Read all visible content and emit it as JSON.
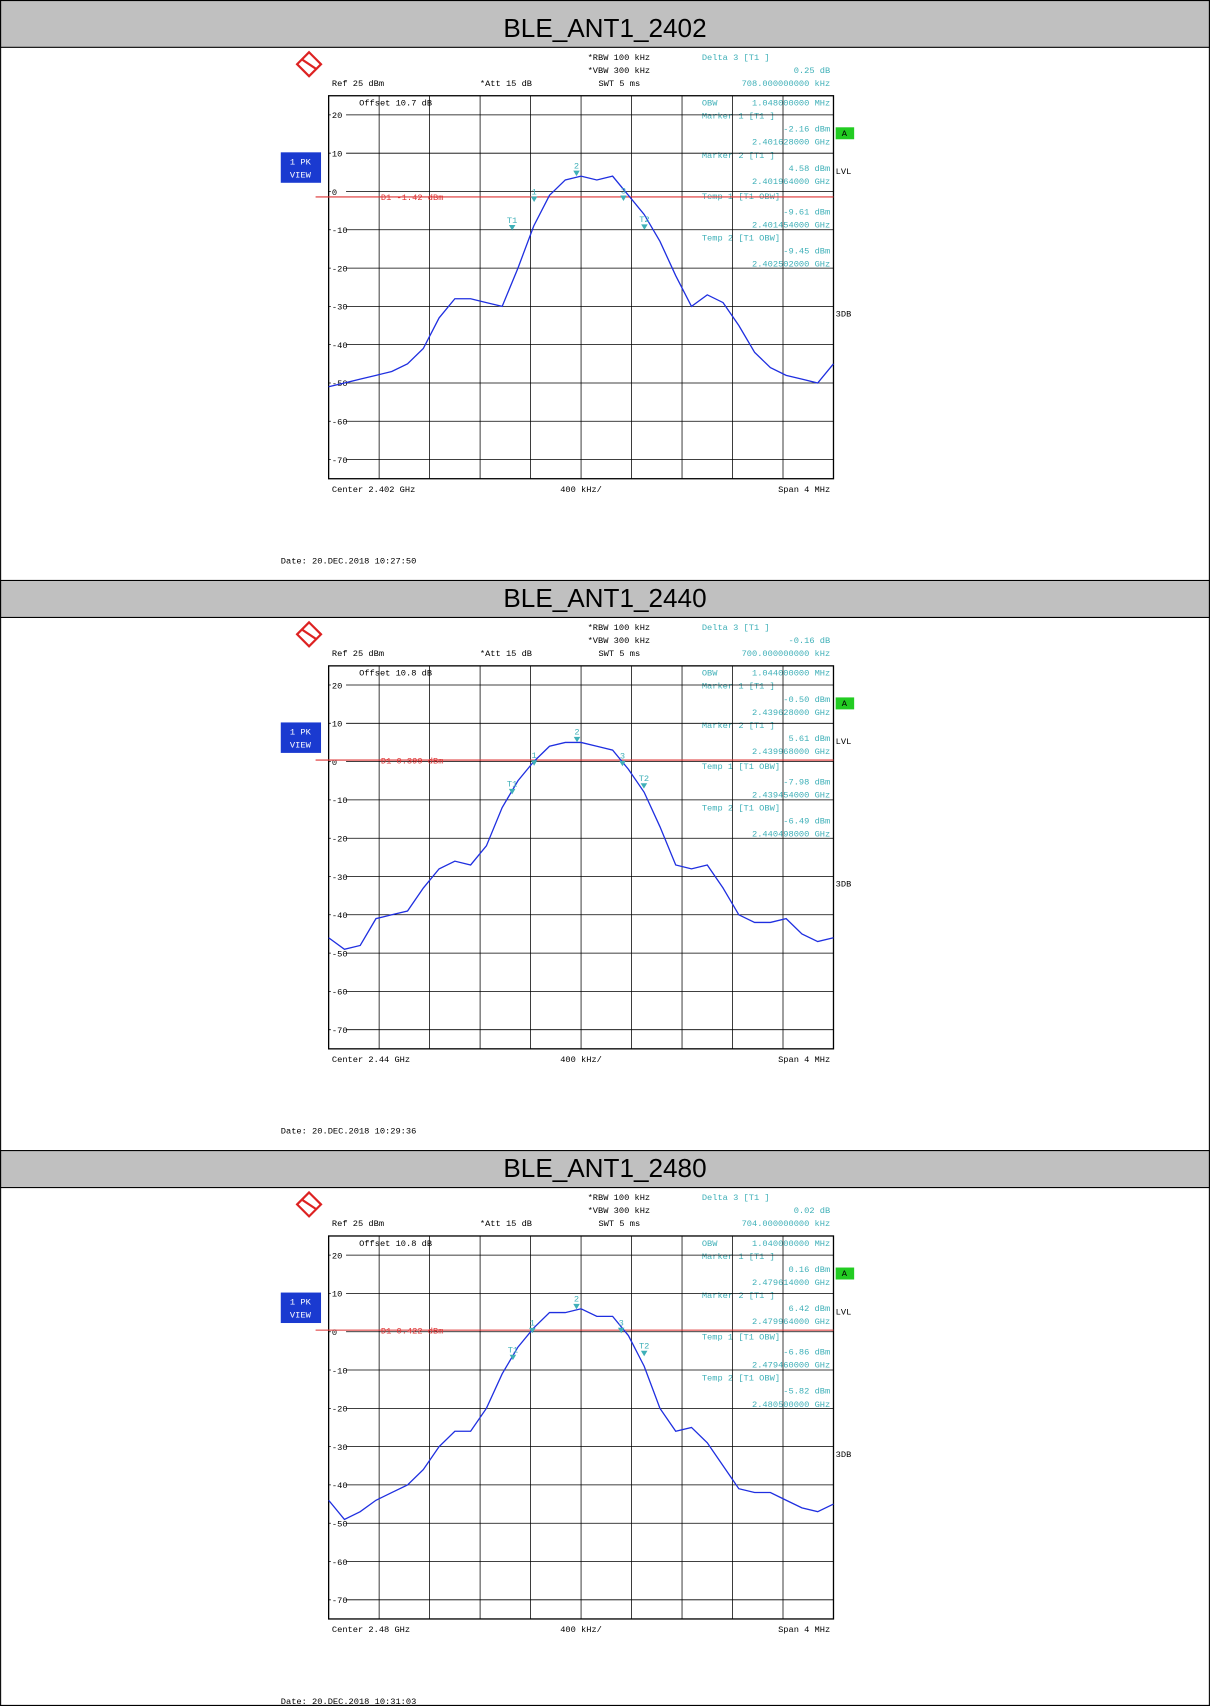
{
  "chart_data": [
    {
      "type": "line",
      "title": "BLE_ANT1_2402",
      "settings": [
        "*RBW 100 kHz",
        "*VBW 300 kHz",
        "SWT 5 ms",
        "Ref 25 dBm",
        "*Att 15 dB",
        "Offset 10.7 dB"
      ],
      "readout": [
        "Delta 3 [T1 ]",
        "0.25 dB",
        "708.000000000 kHz",
        "OBW",
        "1.048000000 MHz",
        "Marker 1 [T1 ]",
        "-2.16 dBm",
        "2.401628000 GHz",
        "Marker 2 [T1 ]",
        "4.58 dBm",
        "2.401964000 GHz",
        "Temp 1 [T1 OBW]",
        "-9.61 dBm",
        "2.401454000 GHz",
        "Temp 2 [T1 OBW]",
        "-9.45 dBm",
        "2.402502000 GHz"
      ],
      "footer": [
        "Center 2.402 GHz",
        "400 kHz/",
        "Span 4 MHz"
      ],
      "date": "Date: 20.DEC.2018 10:27:50",
      "side_labels": [
        "1 PK",
        "VIEW",
        "A",
        "LVL",
        "3DB"
      ],
      "display_line": {
        "value": -1.42,
        "label": "D1 -1.42 dBm"
      },
      "markers": [
        {
          "label": "1",
          "x": 2.401628,
          "y": -2.16
        },
        {
          "label": "2",
          "x": 2.401964,
          "y": 4.58
        },
        {
          "label": "3",
          "x": 2.402336,
          "y": -1.91
        },
        {
          "label": "T1",
          "x": 2.401454,
          "y": -9.61
        },
        {
          "label": "T2",
          "x": 2.402502,
          "y": -9.45
        }
      ],
      "x": [
        2.4,
        2.400125,
        2.40025,
        2.400375,
        2.4005,
        2.400625,
        2.40075,
        2.400875,
        2.401,
        2.401125,
        2.40125,
        2.401375,
        2.4015,
        2.401625,
        2.40175,
        2.401875,
        2.402,
        2.402125,
        2.40225,
        2.402375,
        2.4025,
        2.402625,
        2.40275,
        2.402875,
        2.403,
        2.403125,
        2.40325,
        2.403375,
        2.4035,
        2.403625,
        2.40375,
        2.403875,
        2.404
      ],
      "values": [
        -51,
        -50,
        -49,
        -48,
        -47,
        -45,
        -41,
        -33,
        -28,
        -28,
        -29,
        -30,
        -20,
        -9,
        -1,
        3,
        4,
        3,
        4,
        -1,
        -6,
        -13,
        -22,
        -30,
        -27,
        -29,
        -35,
        -42,
        -46,
        -48,
        -49,
        -50,
        -45
      ],
      "color": "#1f2fe0",
      "xlim": [
        2.4,
        2.404
      ],
      "ylim": [
        -75,
        25
      ],
      "yticks": [
        20,
        10,
        0,
        -10,
        -20,
        -30,
        -40,
        -50,
        -60,
        -70
      ],
      "grid": true
    },
    {
      "type": "line",
      "title": "BLE_ANT1_2440",
      "settings": [
        "*RBW 100 kHz",
        "*VBW 300 kHz",
        "SWT 5 ms",
        "Ref 25 dBm",
        "*Att 15 dB",
        "Offset 10.8 dB"
      ],
      "readout": [
        "Delta 3 [T1 ]",
        "-0.16 dB",
        "700.000000000 kHz",
        "OBW",
        "1.044000000 MHz",
        "Marker 1 [T1 ]",
        "-0.50 dBm",
        "2.439628000 GHz",
        "Marker 2 [T1 ]",
        "5.61 dBm",
        "2.439968000 GHz",
        "Temp 1 [T1 OBW]",
        "-7.98 dBm",
        "2.439454000 GHz",
        "Temp 2 [T1 OBW]",
        "-6.49 dBm",
        "2.440498000 GHz"
      ],
      "footer": [
        "Center 2.44 GHz",
        "400 kHz/",
        "Span 4 MHz"
      ],
      "date": "Date: 20.DEC.2018 10:29:36",
      "side_labels": [
        "1 PK",
        "VIEW",
        "A",
        "LVL",
        "3DB"
      ],
      "display_line": {
        "value": 0.399,
        "label": "D1 0.399 dBm"
      },
      "markers": [
        {
          "label": "1",
          "x": 2.439628,
          "y": -0.5
        },
        {
          "label": "2",
          "x": 2.439968,
          "y": 5.61
        },
        {
          "label": "3",
          "x": 2.440328,
          "y": -0.66
        },
        {
          "label": "T1",
          "x": 2.439454,
          "y": -7.98
        },
        {
          "label": "T2",
          "x": 2.440498,
          "y": -6.49
        }
      ],
      "x": [
        2.438,
        2.438125,
        2.43825,
        2.438375,
        2.4385,
        2.438625,
        2.43875,
        2.438875,
        2.439,
        2.439125,
        2.43925,
        2.439375,
        2.4395,
        2.439625,
        2.43975,
        2.439875,
        2.44,
        2.440125,
        2.44025,
        2.440375,
        2.4405,
        2.440625,
        2.44075,
        2.440875,
        2.441,
        2.441125,
        2.44125,
        2.441375,
        2.4415,
        2.441625,
        2.44175,
        2.441875,
        2.442
      ],
      "values": [
        -46,
        -49,
        -48,
        -41,
        -40,
        -39,
        -33,
        -28,
        -26,
        -27,
        -22,
        -12,
        -5,
        0,
        4,
        5,
        5,
        4,
        3,
        -2,
        -8,
        -17,
        -27,
        -28,
        -27,
        -33,
        -40,
        -42,
        -42,
        -41,
        -45,
        -47,
        -46
      ],
      "color": "#1f2fe0",
      "xlim": [
        2.438,
        2.442
      ],
      "ylim": [
        -75,
        25
      ],
      "yticks": [
        20,
        10,
        0,
        -10,
        -20,
        -30,
        -40,
        -50,
        -60,
        -70
      ],
      "grid": true
    },
    {
      "type": "line",
      "title": "BLE_ANT1_2480",
      "settings": [
        "*RBW 100 kHz",
        "*VBW 300 kHz",
        "SWT 5 ms",
        "Ref 25 dBm",
        "*Att 15 dB",
        "Offset 10.8 dB"
      ],
      "readout": [
        "Delta 3 [T1 ]",
        "0.02 dB",
        "704.000000000 kHz",
        "OBW",
        "1.040000000 MHz",
        "Marker 1 [T1 ]",
        "0.16 dBm",
        "2.479614000 GHz",
        "Marker 2 [T1 ]",
        "6.42 dBm",
        "2.479964000 GHz",
        "Temp 1 [T1 OBW]",
        "-6.86 dBm",
        "2.479460000 GHz",
        "Temp 2 [T1 OBW]",
        "-5.82 dBm",
        "2.480500000 GHz"
      ],
      "footer": [
        "Center 2.48 GHz",
        "400 kHz/",
        "Span 4 MHz"
      ],
      "date": "Date: 20.DEC.2018 10:31:03",
      "side_labels": [
        "1 PK",
        "VIEW",
        "A",
        "LVL",
        "3DB"
      ],
      "display_line": {
        "value": 0.422,
        "label": "D1 0.422 dBm"
      },
      "markers": [
        {
          "label": "1",
          "x": 2.479614,
          "y": 0.16
        },
        {
          "label": "2",
          "x": 2.479964,
          "y": 6.42
        },
        {
          "label": "3",
          "x": 2.480318,
          "y": 0.18
        },
        {
          "label": "T1",
          "x": 2.47946,
          "y": -6.86
        },
        {
          "label": "T2",
          "x": 2.4805,
          "y": -5.82
        }
      ],
      "x": [
        2.478,
        2.478125,
        2.47825,
        2.478375,
        2.4785,
        2.478625,
        2.47875,
        2.478875,
        2.479,
        2.479125,
        2.47925,
        2.479375,
        2.4795,
        2.479625,
        2.47975,
        2.479875,
        2.48,
        2.480125,
        2.48025,
        2.480375,
        2.4805,
        2.480625,
        2.48075,
        2.480875,
        2.481,
        2.481125,
        2.48125,
        2.481375,
        2.4815,
        2.481625,
        2.48175,
        2.481875,
        2.482
      ],
      "values": [
        -44,
        -49,
        -47,
        -44,
        -42,
        -40,
        -36,
        -30,
        -26,
        -26,
        -20,
        -11,
        -4,
        1,
        5,
        5,
        6,
        4,
        4,
        -1,
        -9,
        -20,
        -26,
        -25,
        -29,
        -35,
        -41,
        -42,
        -42,
        -44,
        -46,
        -47,
        -45
      ],
      "color": "#1f2fe0",
      "xlim": [
        2.478,
        2.482
      ],
      "ylim": [
        -75,
        25
      ],
      "yticks": [
        20,
        10,
        0,
        -10,
        -20,
        -30,
        -40,
        -50,
        -60,
        -70
      ],
      "grid": true
    }
  ]
}
